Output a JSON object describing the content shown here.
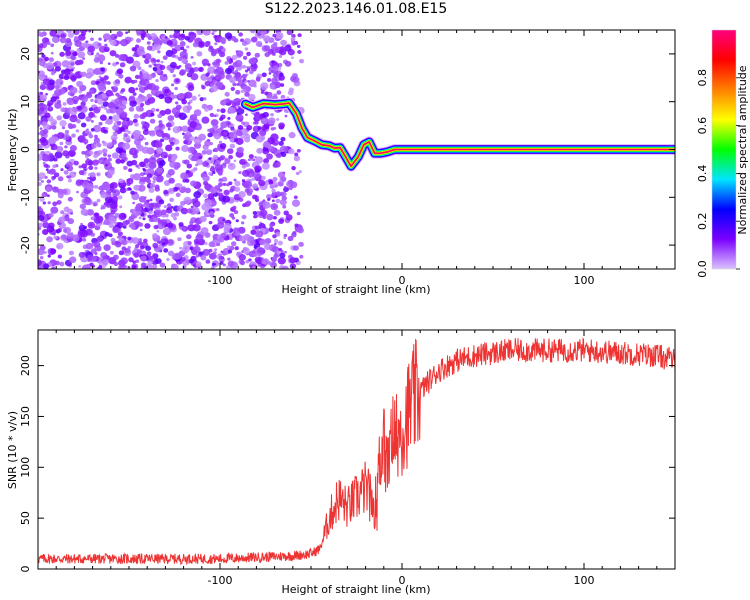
{
  "title": "S122.2023.146.01.08.E15",
  "chart_data": [
    {
      "type": "heatmap",
      "title": "S122.2023.146.01.08.E15",
      "xlabel": "Height of straight line (km)",
      "ylabel": "Frequency (Hz)",
      "xlim": [
        -200,
        150
      ],
      "ylim": [
        -25,
        25
      ],
      "x_ticks": [
        -100,
        0,
        100
      ],
      "y_ticks": [
        -20,
        -10,
        0,
        10,
        20
      ],
      "colorbar": {
        "label": "Normalized spectral amplitude",
        "range": [
          0.0,
          1.0
        ],
        "ticks": [
          0.0,
          0.2,
          0.4,
          0.6,
          0.8
        ],
        "colors": [
          "#dcc3ff",
          "#7a00ff",
          "#0000ff",
          "#00e5ff",
          "#00ff00",
          "#ffff00",
          "#ff8000",
          "#ff0000",
          "#ff007f"
        ]
      },
      "noise_region": {
        "x_range": [
          -200,
          -55
        ],
        "y_range": [
          -25,
          25
        ],
        "amplitude": "0.0–0.2"
      },
      "tone_track": {
        "x": [
          -86,
          -82,
          -76,
          -70,
          -66,
          -62,
          -58,
          -55,
          -52,
          -48,
          -44,
          -40,
          -37,
          -34,
          -31,
          -28,
          -26,
          -24,
          -21,
          -18,
          -15,
          -12,
          -8,
          -4,
          0,
          20,
          40,
          60,
          80,
          100,
          120,
          140,
          150
        ],
        "y": [
          9.5,
          8.8,
          9.6,
          9.4,
          9.5,
          9.7,
          7.5,
          4.5,
          2.5,
          1.8,
          1.0,
          0.8,
          0.3,
          0.4,
          -1.5,
          -3.5,
          -2.5,
          -1.5,
          1.0,
          1.6,
          -0.8,
          -0.8,
          -0.5,
          0.0,
          0.0,
          0.0,
          0.0,
          0.0,
          0.0,
          0.0,
          0.0,
          0.0,
          0.0
        ]
      }
    },
    {
      "type": "line",
      "xlabel": "Height of straight line (km)",
      "ylabel": "SNR (10 * v/v)",
      "xlim": [
        -200,
        150
      ],
      "ylim": [
        0,
        235
      ],
      "x_ticks": [
        -100,
        0,
        100
      ],
      "y_ticks": [
        0,
        50,
        100,
        150,
        200
      ],
      "series": [
        {
          "color": "#ee3333",
          "x": [
            -200,
            -150,
            -100,
            -60,
            -50,
            -45,
            -40,
            -35,
            -30,
            -25,
            -20,
            -15,
            -12,
            -10,
            -8,
            -5,
            0,
            5,
            10,
            20,
            30,
            40,
            60,
            100,
            140,
            150
          ],
          "y": [
            10,
            10,
            10,
            13,
            15,
            20,
            50,
            70,
            60,
            70,
            80,
            60,
            110,
            120,
            100,
            130,
            140,
            160,
            175,
            195,
            205,
            210,
            215,
            215,
            210,
            205
          ]
        }
      ]
    }
  ]
}
